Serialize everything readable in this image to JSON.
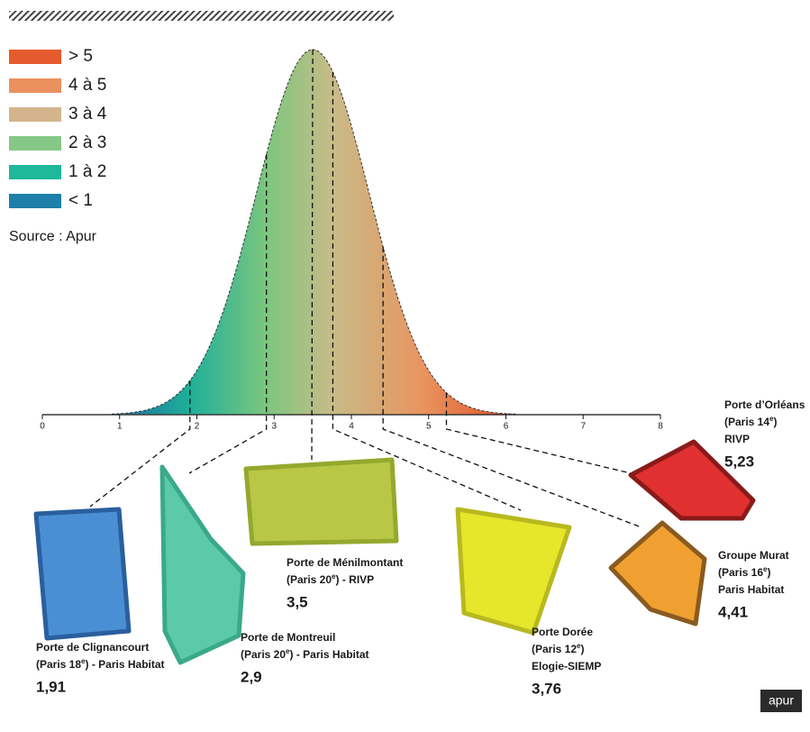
{
  "chart_data": {
    "type": "distribution",
    "legend": [
      {
        "label": "> 5",
        "color": "#e55b2d"
      },
      {
        "label": "4 à 5",
        "color": "#eb9160"
      },
      {
        "label": "3 à 4",
        "color": "#d4b48c"
      },
      {
        "label": "2 à 3",
        "color": "#86c887"
      },
      {
        "label": "1 à 2",
        "color": "#1eb89a"
      },
      {
        "label": "< 1",
        "color": "#1e7fa8"
      }
    ],
    "source": "Source : Apur",
    "xlim": [
      0,
      8
    ],
    "xticks": [
      0,
      1,
      2,
      3,
      4,
      5,
      6,
      7,
      8
    ],
    "sites": [
      {
        "name": "Porte de Clignancourt",
        "place": [
          "(Paris 18",
          "e",
          ") - Paris Habitat"
        ],
        "value": 1.91,
        "value_label": "1,91",
        "color": "#4a8fd4"
      },
      {
        "name": "Porte de Montreuil",
        "place": [
          "(Paris 20",
          "e",
          ") - Paris Habitat"
        ],
        "value": 2.9,
        "value_label": "2,9",
        "color": "#5cc9a8"
      },
      {
        "name": "Porte de Ménilmontant",
        "place": [
          "(Paris 20",
          "e",
          ") - RIVP"
        ],
        "value": 3.5,
        "value_label": "3,5",
        "color": "#b8c846"
      },
      {
        "name": "Porte Dorée",
        "place": [
          "(Paris 12",
          "e",
          ")"
        ],
        "operator": "Elogie-SIEMP",
        "value": 3.76,
        "value_label": "3,76",
        "color": "#e6e62a"
      },
      {
        "name": "Groupe Murat",
        "place": [
          "(Paris 16",
          "e",
          ")"
        ],
        "operator": "Paris Habitat",
        "value": 4.41,
        "value_label": "4,41",
        "color": "#f0a030"
      },
      {
        "name": "Porte d’Orléans",
        "place": [
          "(Paris 14",
          "e",
          ")"
        ],
        "operator": "RIVP",
        "value": 5.23,
        "value_label": "5,23",
        "color": "#e03030"
      }
    ],
    "logo": "apur"
  }
}
